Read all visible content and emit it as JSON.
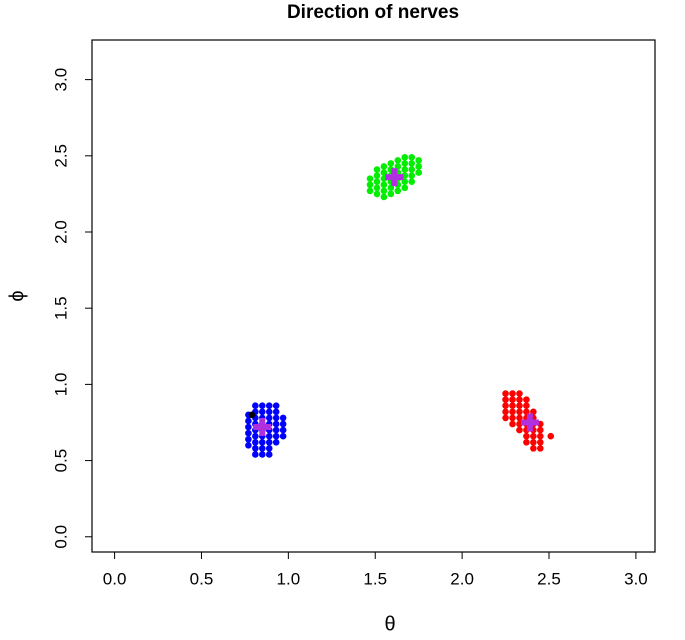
{
  "chart_data": {
    "type": "scatter",
    "title": "Direction of nerves",
    "x_label": "θ",
    "y_label": "ϕ",
    "xlim": [
      -0.13,
      3.11
    ],
    "ylim": [
      -0.1,
      3.26
    ],
    "xticks": [
      {
        "value": 0,
        "label": "0.0"
      },
      0.5,
      {
        "value": 1,
        "label": "1.0"
      },
      1.5,
      {
        "value": 2,
        "label": "2.0"
      },
      2.5,
      {
        "value": 3,
        "label": "3.0"
      }
    ],
    "yticks": [
      {
        "value": 0,
        "label": "0.0"
      },
      0.5,
      {
        "value": 1,
        "label": "1.0"
      },
      1.5,
      {
        "value": 2,
        "label": "2.0"
      },
      2.5,
      {
        "value": 3,
        "label": "3.0"
      }
    ],
    "series": [
      {
        "color": "#0000ff",
        "marker": "dot",
        "x": [
          0.77,
          0.77,
          0.77,
          0.77,
          0.77,
          0.77,
          0.81,
          0.81,
          0.81,
          0.81,
          0.81,
          0.81,
          0.81,
          0.81,
          0.81,
          0.85,
          0.85,
          0.85,
          0.85,
          0.85,
          0.85,
          0.85,
          0.85,
          0.85,
          0.89,
          0.89,
          0.89,
          0.89,
          0.89,
          0.89,
          0.89,
          0.89,
          0.89,
          0.93,
          0.93,
          0.93,
          0.93,
          0.93,
          0.93,
          0.93,
          0.97,
          0.97,
          0.97,
          0.97
        ],
        "values": [
          0.6,
          0.64,
          0.68,
          0.72,
          0.76,
          0.8,
          0.54,
          0.58,
          0.62,
          0.66,
          0.7,
          0.74,
          0.78,
          0.82,
          0.86,
          0.54,
          0.58,
          0.62,
          0.66,
          0.7,
          0.74,
          0.78,
          0.82,
          0.86,
          0.54,
          0.58,
          0.62,
          0.66,
          0.7,
          0.74,
          0.78,
          0.82,
          0.86,
          0.62,
          0.66,
          0.7,
          0.74,
          0.78,
          0.82,
          0.86,
          0.66,
          0.7,
          0.74,
          0.78
        ]
      },
      {
        "color": "#000000",
        "marker": "dot",
        "x": [
          0.79
        ],
        "values": [
          0.8
        ]
      },
      {
        "color": "#00ee00",
        "marker": "dot",
        "x": [
          1.47,
          1.47,
          1.47,
          1.51,
          1.51,
          1.51,
          1.51,
          1.51,
          1.55,
          1.55,
          1.55,
          1.55,
          1.55,
          1.55,
          1.59,
          1.59,
          1.59,
          1.59,
          1.59,
          1.59,
          1.63,
          1.63,
          1.63,
          1.63,
          1.63,
          1.63,
          1.67,
          1.67,
          1.67,
          1.67,
          1.67,
          1.67,
          1.71,
          1.71,
          1.71,
          1.71,
          1.71,
          1.75,
          1.75,
          1.75
        ],
        "values": [
          2.27,
          2.31,
          2.35,
          2.25,
          2.29,
          2.33,
          2.37,
          2.41,
          2.23,
          2.27,
          2.31,
          2.35,
          2.39,
          2.43,
          2.25,
          2.29,
          2.33,
          2.37,
          2.41,
          2.45,
          2.27,
          2.31,
          2.35,
          2.39,
          2.43,
          2.47,
          2.29,
          2.33,
          2.37,
          2.41,
          2.45,
          2.49,
          2.33,
          2.37,
          2.41,
          2.45,
          2.49,
          2.39,
          2.43,
          2.47
        ]
      },
      {
        "color": "#ff0000",
        "marker": "dot",
        "x": [
          2.25,
          2.25,
          2.25,
          2.25,
          2.25,
          2.29,
          2.29,
          2.29,
          2.29,
          2.29,
          2.29,
          2.33,
          2.33,
          2.33,
          2.33,
          2.33,
          2.33,
          2.33,
          2.37,
          2.37,
          2.37,
          2.37,
          2.37,
          2.37,
          2.37,
          2.37,
          2.41,
          2.41,
          2.41,
          2.41,
          2.41,
          2.41,
          2.41,
          2.45,
          2.45,
          2.45,
          2.45,
          2.45,
          2.51
        ],
        "values": [
          0.78,
          0.82,
          0.86,
          0.9,
          0.94,
          0.74,
          0.78,
          0.82,
          0.86,
          0.9,
          0.94,
          0.7,
          0.74,
          0.78,
          0.82,
          0.86,
          0.9,
          0.94,
          0.62,
          0.66,
          0.7,
          0.74,
          0.78,
          0.82,
          0.86,
          0.9,
          0.58,
          0.62,
          0.66,
          0.7,
          0.74,
          0.78,
          0.82,
          0.58,
          0.62,
          0.66,
          0.7,
          0.74,
          0.66
        ]
      },
      {
        "color": "#b030e0",
        "marker": "plus",
        "x": [
          0.85,
          1.61,
          2.39
        ],
        "values": [
          0.72,
          2.36,
          0.75
        ]
      }
    ]
  }
}
